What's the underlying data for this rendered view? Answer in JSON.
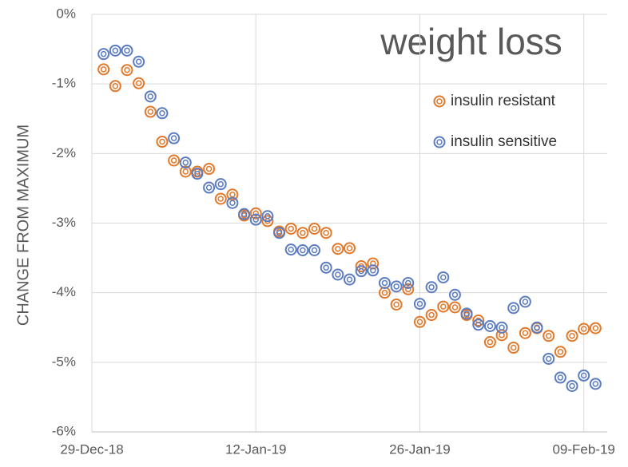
{
  "chart_data": {
    "type": "scatter",
    "title": "weight loss",
    "ylabel": "CHANGE FROM MAXIMUM",
    "x": [
      "30-Dec-18",
      "31-Dec-18",
      "01-Jan-19",
      "02-Jan-19",
      "03-Jan-19",
      "04-Jan-19",
      "05-Jan-19",
      "06-Jan-19",
      "07-Jan-19",
      "08-Jan-19",
      "09-Jan-19",
      "10-Jan-19",
      "11-Jan-19",
      "12-Jan-19",
      "13-Jan-19",
      "14-Jan-19",
      "15-Jan-19",
      "16-Jan-19",
      "17-Jan-19",
      "18-Jan-19",
      "19-Jan-19",
      "20-Jan-19",
      "21-Jan-19",
      "22-Jan-19",
      "23-Jan-19",
      "24-Jan-19",
      "25-Jan-19",
      "26-Jan-19",
      "27-Jan-19",
      "28-Jan-19",
      "29-Jan-19",
      "30-Jan-19",
      "31-Jan-19",
      "01-Feb-19",
      "02-Feb-19",
      "03-Feb-19",
      "04-Feb-19",
      "05-Feb-19",
      "06-Feb-19",
      "07-Feb-19",
      "08-Feb-19",
      "09-Feb-19",
      "10-Feb-19"
    ],
    "series": [
      {
        "name": "insulin resistant",
        "color": "#e2782a",
        "values": [
          -0.79,
          -1.03,
          -0.8,
          -0.99,
          -1.4,
          -1.83,
          -2.1,
          -2.26,
          -2.26,
          -2.22,
          -2.65,
          -2.59,
          -2.89,
          -2.86,
          -2.97,
          -3.12,
          -3.08,
          -3.14,
          -3.08,
          -3.14,
          -3.37,
          -3.36,
          -3.62,
          -3.58,
          -4.0,
          -4.17,
          -3.95,
          -4.42,
          -4.32,
          -4.2,
          -4.21,
          -4.32,
          -4.4,
          -4.71,
          -4.61,
          -4.79,
          -4.58,
          -4.51,
          -4.62,
          -4.85,
          -4.62,
          -4.52,
          -4.51
        ]
      },
      {
        "name": "insulin sensitive",
        "color": "#5b7cc0",
        "values": [
          -0.57,
          -0.52,
          -0.52,
          -0.68,
          -1.18,
          -1.42,
          -1.78,
          -2.13,
          -2.29,
          -2.49,
          -2.44,
          -2.71,
          -2.87,
          -2.95,
          -2.9,
          -3.14,
          -3.38,
          -3.39,
          -3.39,
          -3.64,
          -3.74,
          -3.81,
          -3.69,
          -3.68,
          -3.86,
          -3.91,
          -3.86,
          -4.16,
          -3.92,
          -3.78,
          -4.03,
          -4.3,
          -4.46,
          -4.48,
          -4.5,
          -4.22,
          -4.13,
          -4.5,
          -4.95,
          -5.22,
          -5.34,
          -5.19,
          -5.31
        ]
      }
    ],
    "xlim": [
      "29-Dec-18",
      "11-Feb-19"
    ],
    "xticks": [
      "29-Dec-18",
      "12-Jan-19",
      "26-Jan-19",
      "09-Feb-19"
    ],
    "ylim": [
      -6,
      0
    ],
    "yticks": [
      {
        "value": 0,
        "label": "0%"
      },
      {
        "value": -1,
        "label": "-1%"
      },
      {
        "value": -2,
        "label": "-2%"
      },
      {
        "value": -3,
        "label": "-3%"
      },
      {
        "value": -4,
        "label": "-4%"
      },
      {
        "value": -5,
        "label": "-5%"
      },
      {
        "value": -6,
        "label": "-6%"
      }
    ],
    "grid": true,
    "legend": "upper right"
  }
}
